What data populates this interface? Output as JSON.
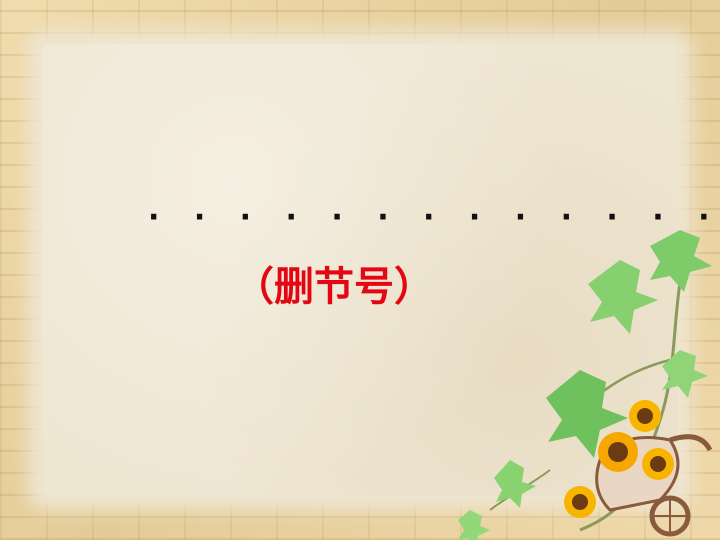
{
  "slide": {
    "dots": "· · · · · · · · · · · · ·",
    "title": "（删节号）"
  },
  "colors": {
    "title": "#e30613",
    "dots": "#111111"
  }
}
